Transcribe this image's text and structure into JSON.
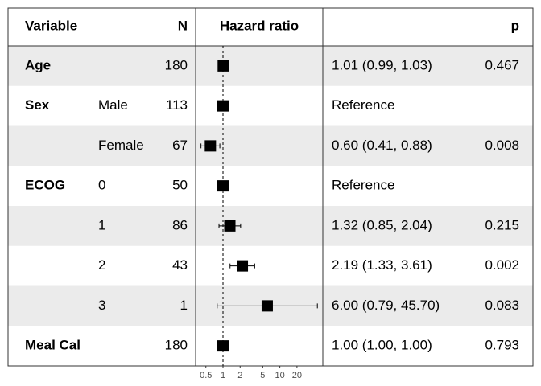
{
  "chart_data": {
    "type": "forest",
    "headers": {
      "variable": "Variable",
      "n": "N",
      "estimate": "Hazard ratio",
      "p": "p"
    },
    "variables": [
      "Age",
      "Sex",
      null,
      "ECOG",
      null,
      null,
      null,
      "Meal Cal"
    ],
    "levels": [
      null,
      "Male",
      "Female",
      "0",
      "1",
      "2",
      "3",
      null
    ],
    "n": [
      180,
      113,
      67,
      50,
      86,
      43,
      1,
      180
    ],
    "values": [
      1.01,
      1,
      0.6,
      1,
      1.32,
      2.19,
      6.0,
      1.0
    ],
    "lower": [
      0.99,
      null,
      0.41,
      null,
      0.85,
      1.33,
      0.79,
      1.0
    ],
    "upper": [
      1.03,
      null,
      0.88,
      null,
      2.04,
      3.61,
      45.7,
      1.0
    ],
    "value_labels": [
      "1.01 (0.99, 1.03)",
      "Reference",
      "0.60 (0.41, 0.88)",
      "Reference",
      "1.32 (0.85, 2.04)",
      "2.19 (1.33, 3.61)",
      "6.00 (0.79, 45.70)",
      "1.00 (1.00, 1.00)"
    ],
    "p_values": [
      0.467,
      null,
      0.008,
      null,
      0.215,
      0.002,
      0.083,
      0.793
    ],
    "xscale": "log",
    "xlim": [
      0.33,
      57
    ],
    "xticks": [
      0.5,
      1,
      2,
      5,
      10,
      20
    ],
    "reference_line": 1,
    "color": "#000000",
    "stripe_color": "#ebebeb"
  }
}
